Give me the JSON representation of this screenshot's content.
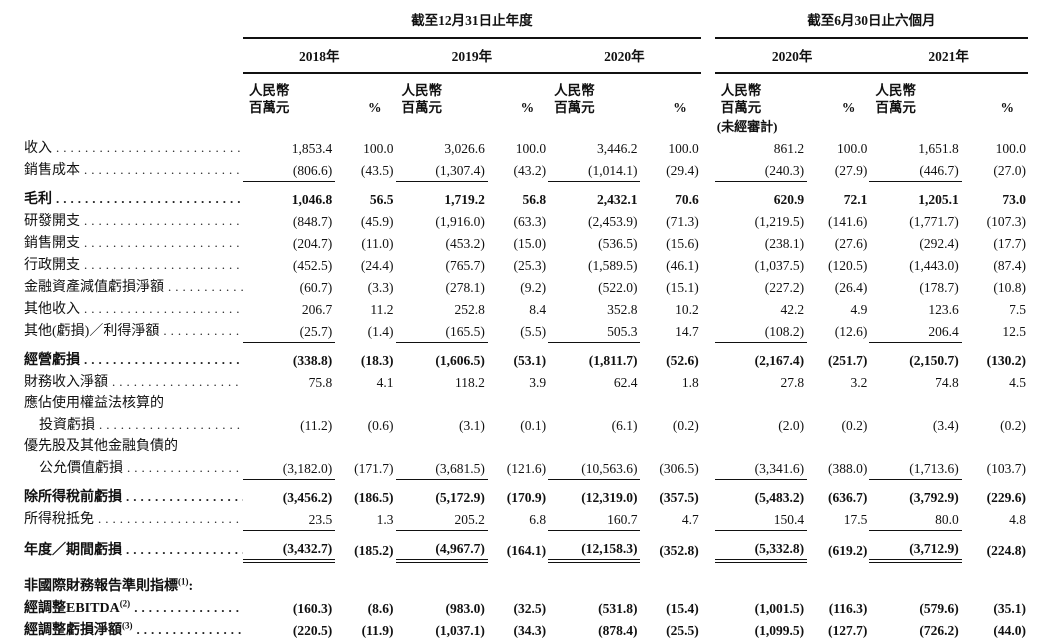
{
  "table": {
    "period_headers": [
      {
        "title": "截至12月31日止年度"
      },
      {
        "title": "截至6月30日止六個月"
      }
    ],
    "year_headers": [
      "2018年",
      "2019年",
      "2020年",
      "2020年",
      "2021年"
    ],
    "unit_amount_line1": "人民幣",
    "unit_amount_line2": "百萬元",
    "unit_pct": "%",
    "unaudited_note": "(未經審計)",
    "rows": [
      {
        "label": "收入",
        "dots": true,
        "values": [
          "1,853.4",
          "100.0",
          "3,026.6",
          "100.0",
          "3,446.2",
          "100.0",
          "861.2",
          "100.0",
          "1,651.8",
          "100.0"
        ]
      },
      {
        "label": "銷售成本",
        "dots": true,
        "rule": "single",
        "values": [
          "(806.6)",
          "(43.5)",
          "(1,307.4)",
          "(43.2)",
          "(1,014.1)",
          "(29.4)",
          "(240.3)",
          "(27.9)",
          "(446.7)",
          "(27.0)"
        ]
      },
      {
        "label": "毛利",
        "dots": true,
        "bold": true,
        "gap": true,
        "values": [
          "1,046.8",
          "56.5",
          "1,719.2",
          "56.8",
          "2,432.1",
          "70.6",
          "620.9",
          "72.1",
          "1,205.1",
          "73.0"
        ]
      },
      {
        "label": "研發開支",
        "dots": true,
        "values": [
          "(848.7)",
          "(45.9)",
          "(1,916.0)",
          "(63.3)",
          "(2,453.9)",
          "(71.3)",
          "(1,219.5)",
          "(141.6)",
          "(1,771.7)",
          "(107.3)"
        ]
      },
      {
        "label": "銷售開支",
        "dots": true,
        "values": [
          "(204.7)",
          "(11.0)",
          "(453.2)",
          "(15.0)",
          "(536.5)",
          "(15.6)",
          "(238.1)",
          "(27.6)",
          "(292.4)",
          "(17.7)"
        ]
      },
      {
        "label": "行政開支",
        "dots": true,
        "values": [
          "(452.5)",
          "(24.4)",
          "(765.7)",
          "(25.3)",
          "(1,589.5)",
          "(46.1)",
          "(1,037.5)",
          "(120.5)",
          "(1,443.0)",
          "(87.4)"
        ]
      },
      {
        "label": "金融資產減值虧損淨額",
        "dots": true,
        "values": [
          "(60.7)",
          "(3.3)",
          "(278.1)",
          "(9.2)",
          "(522.0)",
          "(15.1)",
          "(227.2)",
          "(26.4)",
          "(178.7)",
          "(10.8)"
        ]
      },
      {
        "label": "其他收入",
        "dots": true,
        "values": [
          "206.7",
          "11.2",
          "252.8",
          "8.4",
          "352.8",
          "10.2",
          "42.2",
          "4.9",
          "123.6",
          "7.5"
        ]
      },
      {
        "label": "其他(虧損)／利得淨額",
        "dots": true,
        "rule": "single",
        "values": [
          "(25.7)",
          "(1.4)",
          "(165.5)",
          "(5.5)",
          "505.3",
          "14.7",
          "(108.2)",
          "(12.6)",
          "206.4",
          "12.5"
        ]
      },
      {
        "label": "經營虧損",
        "dots": true,
        "bold": true,
        "gap": true,
        "values": [
          "(338.8)",
          "(18.3)",
          "(1,606.5)",
          "(53.1)",
          "(1,811.7)",
          "(52.6)",
          "(2,167.4)",
          "(251.7)",
          "(2,150.7)",
          "(130.2)"
        ]
      },
      {
        "label": "財務收入淨額",
        "dots": true,
        "values": [
          "75.8",
          "4.1",
          "118.2",
          "3.9",
          "62.4",
          "1.8",
          "27.8",
          "3.2",
          "74.8",
          "4.5"
        ]
      },
      {
        "label": "應佔使用權益法核算的",
        "dots": false
      },
      {
        "label": "投資虧損",
        "indent": true,
        "dots": true,
        "values": [
          "(11.2)",
          "(0.6)",
          "(3.1)",
          "(0.1)",
          "(6.1)",
          "(0.2)",
          "(2.0)",
          "(0.2)",
          "(3.4)",
          "(0.2)"
        ]
      },
      {
        "label": "優先股及其他金融負債的",
        "dots": false
      },
      {
        "label": "公允價值虧損",
        "indent": true,
        "dots": true,
        "rule": "single",
        "values": [
          "(3,182.0)",
          "(171.7)",
          "(3,681.5)",
          "(121.6)",
          "(10,563.6)",
          "(306.5)",
          "(3,341.6)",
          "(388.0)",
          "(1,713.6)",
          "(103.7)"
        ]
      },
      {
        "label": "除所得稅前虧損",
        "dots": true,
        "bold": true,
        "gap": true,
        "values": [
          "(3,456.2)",
          "(186.5)",
          "(5,172.9)",
          "(170.9)",
          "(12,319.0)",
          "(357.5)",
          "(5,483.2)",
          "(636.7)",
          "(3,792.9)",
          "(229.6)"
        ]
      },
      {
        "label": "所得稅抵免",
        "dots": true,
        "rule": "single",
        "values": [
          "23.5",
          "1.3",
          "205.2",
          "6.8",
          "160.7",
          "4.7",
          "150.4",
          "17.5",
          "80.0",
          "4.8"
        ]
      },
      {
        "label": "年度／期間虧損",
        "dots": true,
        "bold": true,
        "gap": true,
        "rule": "double",
        "values": [
          "(3,432.7)",
          "(185.2)",
          "(4,967.7)",
          "(164.1)",
          "(12,158.3)",
          "(352.8)",
          "(5,332.8)",
          "(619.2)",
          "(3,712.9)",
          "(224.8)"
        ]
      },
      {
        "type": "spacer"
      },
      {
        "label": "非國際財務報告準則指標",
        "sup": "(1)",
        "suffix": ":",
        "bold": true,
        "dots": false
      },
      {
        "label": "經調整EBITDA",
        "sup": "(2)",
        "dots": true,
        "bold": true,
        "values": [
          "(160.3)",
          "(8.6)",
          "(983.0)",
          "(32.5)",
          "(531.8)",
          "(15.4)",
          "(1,001.5)",
          "(116.3)",
          "(579.6)",
          "(35.1)"
        ]
      },
      {
        "label": "經調整虧損淨額",
        "sup": "(3)",
        "dots": true,
        "bold": true,
        "values": [
          "(220.5)",
          "(11.9)",
          "(1,037.1)",
          "(34.3)",
          "(878.4)",
          "(25.5)",
          "(1,099.5)",
          "(127.7)",
          "(726.2)",
          "(44.0)"
        ]
      }
    ]
  }
}
